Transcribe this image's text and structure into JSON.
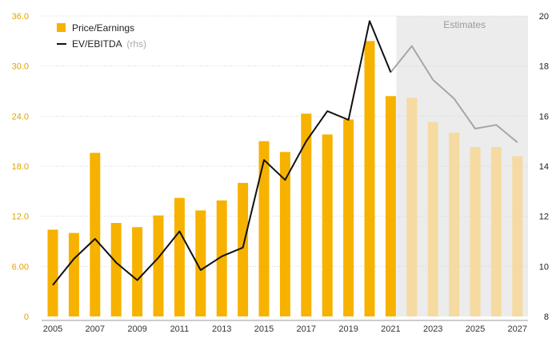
{
  "chart_data": {
    "type": "bar+line",
    "categories": [
      "2005",
      "2006",
      "2007",
      "2008",
      "2009",
      "2010",
      "2011",
      "2012",
      "2013",
      "2014",
      "2015",
      "2016",
      "2017",
      "2018",
      "2019",
      "2020",
      "2021",
      "2022",
      "2023",
      "2024",
      "2025",
      "2026",
      "2027"
    ],
    "x_tick_labels": [
      "2005",
      "2007",
      "2009",
      "2011",
      "2013",
      "2015",
      "2017",
      "2019",
      "2021",
      "2023",
      "2025",
      "2027"
    ],
    "estimate_start_index": 17,
    "shaded_region_label": "Estimates",
    "series": [
      {
        "name": "Price/Earnings",
        "type": "bar",
        "axis": "left",
        "values": [
          10.4,
          10.0,
          19.6,
          11.2,
          10.7,
          12.1,
          14.2,
          12.7,
          13.9,
          16.0,
          21.0,
          19.7,
          24.3,
          21.8,
          23.6,
          33.0,
          26.4,
          26.2,
          23.3,
          22.0,
          20.3,
          20.3,
          19.2
        ]
      },
      {
        "name": "EV/EBITDA",
        "name_suffix": "(rhs)",
        "type": "line",
        "axis": "right",
        "values": [
          9.25,
          10.3,
          11.1,
          10.15,
          9.45,
          10.35,
          11.4,
          9.85,
          10.4,
          10.75,
          14.25,
          13.45,
          15.0,
          16.2,
          15.85,
          19.8,
          17.75,
          18.8,
          17.45,
          16.7,
          15.5,
          15.65,
          14.95
        ]
      }
    ],
    "y_left": {
      "ticks": [
        "0",
        "6.00",
        "12.0",
        "18.0",
        "24.0",
        "30.0",
        "36.0"
      ],
      "range": [
        0,
        36
      ]
    },
    "y_right": {
      "ticks": [
        "8",
        "10",
        "12",
        "14",
        "16",
        "18",
        "20"
      ],
      "range": [
        8,
        20
      ]
    },
    "legend_position": "top-left",
    "grid": "horizontal dotted",
    "colors": {
      "bar": "#f7b200",
      "bar_estimate": "#f5dba1",
      "line": "#111111",
      "line_estimate": "#a6a6a6",
      "shade": "#ececec",
      "left_axis": "#e0a400"
    }
  }
}
